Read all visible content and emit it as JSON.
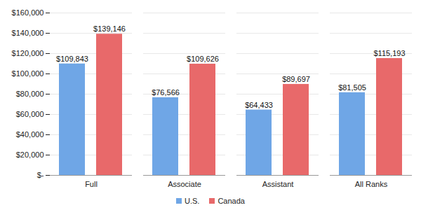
{
  "chart_data": {
    "type": "bar",
    "categories": [
      "Full",
      "Associate",
      "Assistant",
      "All Ranks"
    ],
    "series": [
      {
        "name": "U.S.",
        "color": "#6fa6e6",
        "values": [
          109843,
          76566,
          64433,
          81505
        ],
        "value_labels": [
          "$109,843",
          "$76,566",
          "$64,433",
          "$81,505"
        ]
      },
      {
        "name": "Canada",
        "color": "#e8696a",
        "values": [
          139146,
          109626,
          89697,
          115193
        ],
        "value_labels": [
          "$139,146",
          "$109,626",
          "$89,697",
          "$115,193"
        ]
      }
    ],
    "ylim": [
      0,
      160000
    ],
    "yticks": [
      {
        "value": 0,
        "label": "$-"
      },
      {
        "value": 20000,
        "label": "$20,000"
      },
      {
        "value": 40000,
        "label": "$40,000"
      },
      {
        "value": 60000,
        "label": "$60,000"
      },
      {
        "value": 80000,
        "label": "$80,000"
      },
      {
        "value": 100000,
        "label": "$100,000"
      },
      {
        "value": 120000,
        "label": "$120,000"
      },
      {
        "value": 140000,
        "label": "$140,000"
      },
      {
        "value": 160000,
        "label": "$160,000"
      }
    ],
    "grid": true,
    "data_labels": true,
    "legend": "bottom"
  }
}
